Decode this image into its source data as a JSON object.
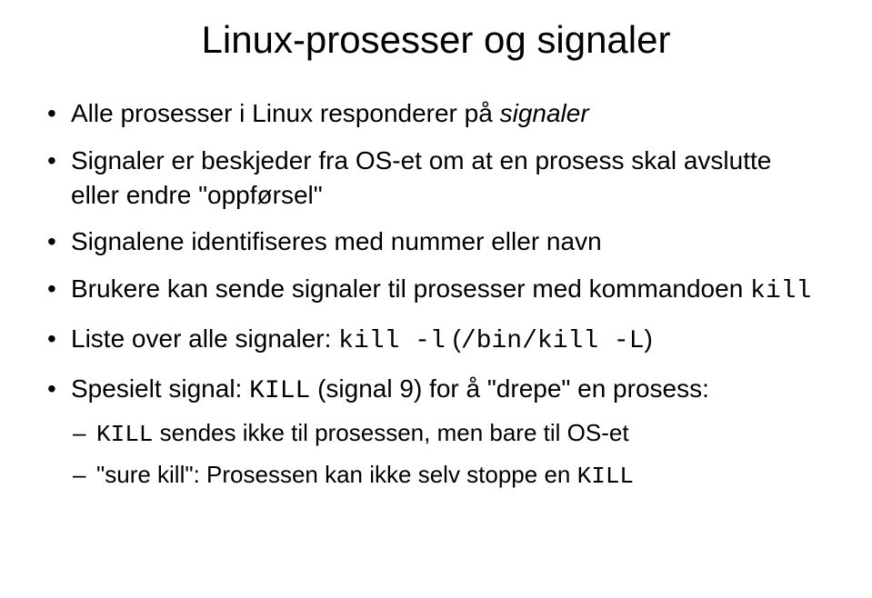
{
  "title": "Linux-prosesser og signaler",
  "bullets": {
    "b1_pre": "Alle prosesser i Linux responderer på ",
    "b1_ital": "signaler",
    "b2": "Signaler er beskjeder fra OS-et om at en prosess skal avslutte eller endre \"oppførsel\"",
    "b3": "Signalene identifiseres med nummer eller navn",
    "b4_pre": "Brukere kan sende signaler til prosesser med kommandoen ",
    "b4_code": "kill",
    "b5_pre": "Liste over alle signaler: ",
    "b5_code1": "kill -l",
    "b5_mid": "   (",
    "b5_code2": "/bin/kill -L",
    "b5_post": ")",
    "b6_pre": "Spesielt signal: ",
    "b6_code": "KILL",
    "b6_post": " (signal 9) for å \"drepe\" en prosess:",
    "b6s1_code": "KILL",
    "b6s1_post": " sendes ikke til prosessen, men bare til OS-et",
    "b6s2_pre": "\"sure kill\": Prosessen kan ikke selv stoppe en ",
    "b6s2_code": "KILL"
  }
}
